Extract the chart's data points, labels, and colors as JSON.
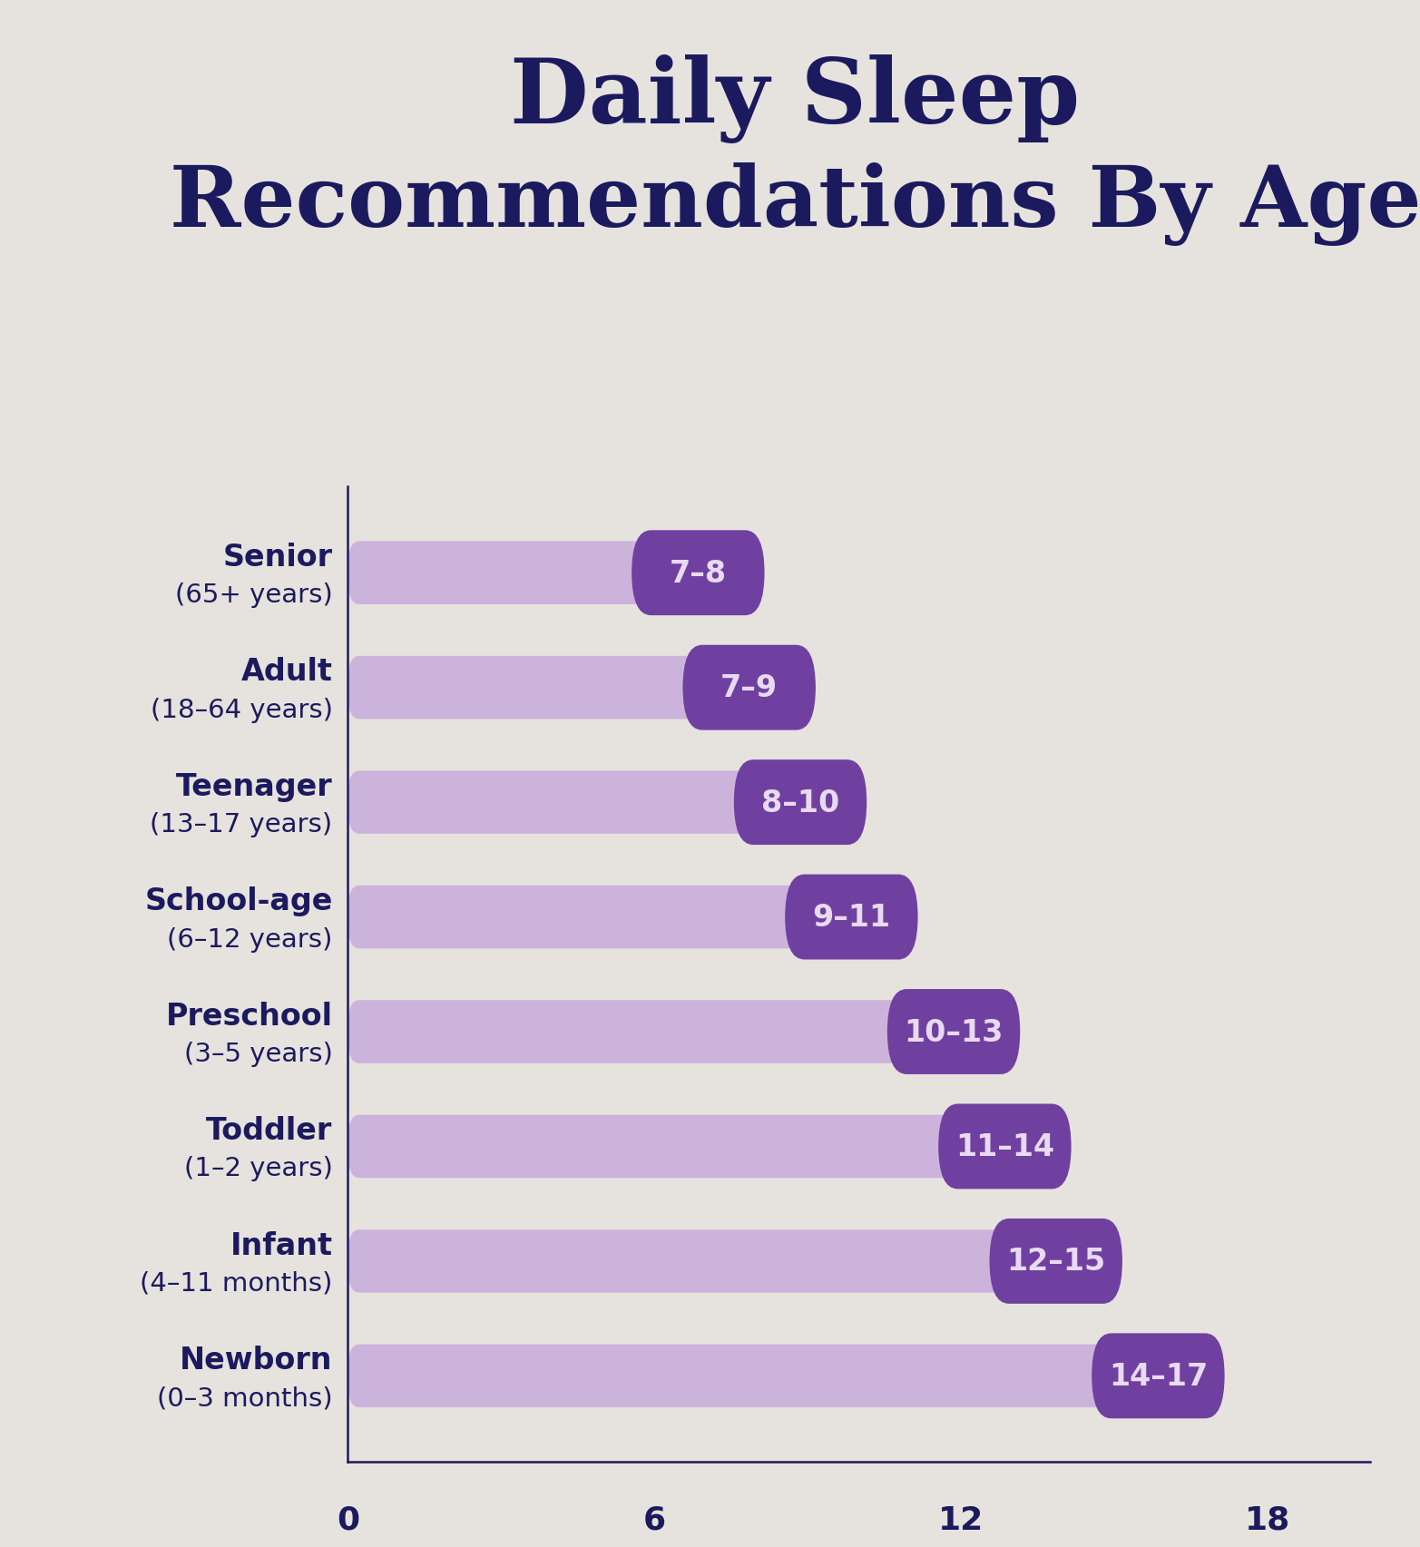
{
  "title_line1": "Daily Sleep",
  "title_line2": "Recommendations By Age",
  "title_color": "#1c1a5e",
  "background_color": "#e6e3de",
  "bar_bg_color": "#ccb3dc",
  "badge_color": "#7040a0",
  "badge_text_color": "#e8daf0",
  "axis_color": "#1c1a5e",
  "label_color": "#1c1a5e",
  "categories_line1": [
    "Senior",
    "Adult",
    "Teenager",
    "School-age",
    "Preschool",
    "Toddler",
    "Infant",
    "Newborn"
  ],
  "categories_line2": [
    "(65+ years)",
    "(18–64 years)",
    "(13–17 years)",
    "(6–12 years)",
    "(3–5 years)",
    "(1–2 years)",
    "(4–11 months)",
    "(0–3 months)"
  ],
  "bar_values": [
    8,
    9,
    10,
    11,
    13,
    14,
    15,
    17
  ],
  "badge_labels": [
    "7–8",
    "7–9",
    "8–10",
    "9–11",
    "10–13",
    "11–14",
    "12–15",
    "14–17"
  ],
  "x_ticks": [
    0,
    6,
    12,
    18
  ],
  "x_tick_numbers": [
    "0",
    "6",
    "12",
    "18"
  ],
  "xlim": [
    0,
    20.0
  ],
  "bar_height": 0.55
}
